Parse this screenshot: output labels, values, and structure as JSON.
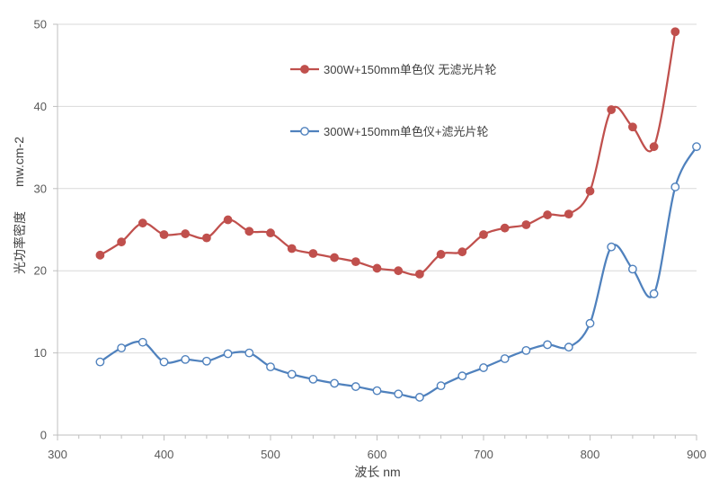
{
  "chart_data": {
    "type": "line",
    "title": "",
    "xlabel": "波长 nm",
    "ylabel": "光功率密度",
    "ylabel_unit": "mw.cm-2",
    "xlim": [
      300,
      900
    ],
    "ylim": [
      0,
      50
    ],
    "x_ticks": [
      300,
      400,
      500,
      600,
      700,
      800,
      900
    ],
    "y_ticks": [
      0,
      10,
      20,
      30,
      40,
      50
    ],
    "x_minor_step": 20,
    "grid": "horizontal",
    "legend_position": "upper-center",
    "series": [
      {
        "name": "300W+150mm单色仪  无滤光片轮",
        "color": "#C0504D",
        "marker": "filled-circle",
        "x": [
          340,
          360,
          380,
          400,
          420,
          440,
          460,
          480,
          500,
          520,
          540,
          560,
          580,
          600,
          620,
          640,
          660,
          680,
          700,
          720,
          740,
          760,
          780,
          800,
          820,
          840,
          860,
          880
        ],
        "y": [
          21.9,
          23.5,
          25.8,
          24.4,
          24.5,
          24.0,
          26.2,
          24.8,
          24.6,
          22.7,
          22.1,
          21.6,
          21.1,
          20.3,
          20.0,
          19.6,
          22.0,
          22.3,
          24.4,
          25.2,
          25.6,
          26.8,
          26.9,
          29.7,
          39.6,
          37.5,
          35.1,
          49.1
        ]
      },
      {
        "name": "300W+150mm单色仪+滤光片轮",
        "color": "#4F81BD",
        "marker": "open-circle",
        "x": [
          340,
          360,
          380,
          400,
          420,
          440,
          460,
          480,
          500,
          520,
          540,
          560,
          580,
          600,
          620,
          640,
          660,
          680,
          700,
          720,
          740,
          760,
          780,
          800,
          820,
          840,
          860,
          880,
          900
        ],
        "y": [
          8.9,
          10.6,
          11.3,
          8.9,
          9.2,
          9.0,
          9.9,
          10.0,
          8.3,
          7.4,
          6.8,
          6.3,
          5.9,
          5.4,
          5.0,
          4.6,
          6.0,
          7.2,
          8.2,
          9.3,
          10.3,
          11.0,
          10.7,
          13.6,
          22.9,
          20.2,
          17.2,
          30.2,
          35.1
        ]
      }
    ]
  }
}
